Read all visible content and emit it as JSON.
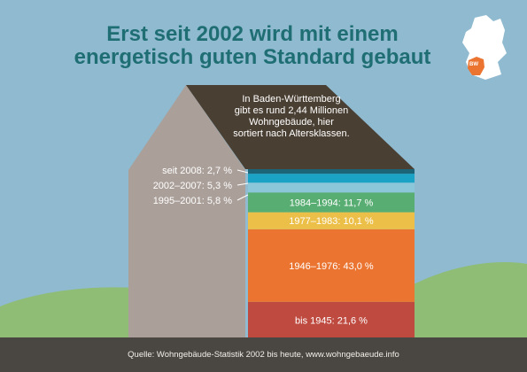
{
  "title": {
    "line1": "Erst seit 2002 wird mit einem",
    "line2": "energetisch guten Standard gebaut"
  },
  "roof_text": {
    "line1": "In Baden-Württemberg",
    "line2": "gibt es rund 2,44 Millionen",
    "line3": "Wohngebäude, hier",
    "line4": "sortiert nach Altersklassen."
  },
  "map_badge": "BW",
  "source": "Quelle: Wohngebäude-Statistik 2002 bis heute, www.wohngebaeude.info",
  "colors": {
    "sky": "#8fbad0",
    "hill": "#8fbd76",
    "roof": "#4a3f33",
    "wall": "#aa9f99",
    "footer": "#4a4642",
    "title": "#1f6e74"
  },
  "chart_data": {
    "type": "bar",
    "orientation": "stacked-horizontal-bands",
    "unit": "%",
    "categories": [
      "bis 1945",
      "1946–1976",
      "1977–1983",
      "1984–1994",
      "1995–2001",
      "2002–2007",
      "seit 2008"
    ],
    "values": [
      21.6,
      43.0,
      10.1,
      11.7,
      5.8,
      5.3,
      2.7
    ],
    "labels": [
      "bis 1945: 21,6 %",
      "1946–1976: 43,0 %",
      "1977–1983: 10,1 %",
      "1984–1994: 11,7 %",
      "1995–2001: 5,8 %",
      "2002–2007: 5,3 %",
      "seit 2008: 2,7 %"
    ],
    "colors": [
      "#bf4a40",
      "#ea7430",
      "#ecbf48",
      "#58ad72",
      "#8cc6d9",
      "#1aa3c4",
      "#1c6578"
    ],
    "label_placement": [
      "inside",
      "inside",
      "inside",
      "inside",
      "outside-left",
      "outside-left",
      "outside-left"
    ]
  }
}
